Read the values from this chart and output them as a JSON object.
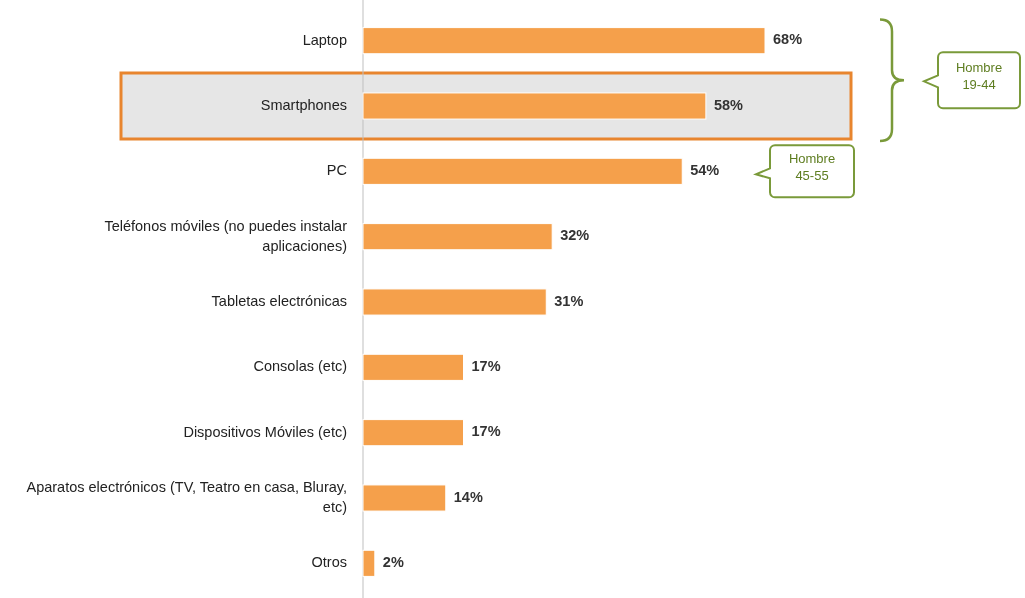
{
  "chart_data": {
    "type": "bar",
    "orientation": "horizontal",
    "categories": [
      "Laptop",
      "Smartphones",
      "PC",
      "Teléfonos móviles (no puedes instalar aplicaciones)",
      "Tabletas electrónicas",
      "Consolas (etc)",
      "Dispositivos Móviles (etc)",
      "Aparatos electrónicos (TV, Teatro en casa, Bluray, etc)",
      "Otros"
    ],
    "values": [
      68,
      58,
      54,
      32,
      31,
      17,
      17,
      14,
      2
    ],
    "value_labels": [
      "68%",
      "58%",
      "54%",
      "32%",
      "31%",
      "17%",
      "17%",
      "14%",
      "2%"
    ],
    "color": "#f5a04b",
    "annotations": [
      "Hombre 19-44",
      "Hombre 45-55"
    ]
  }
}
